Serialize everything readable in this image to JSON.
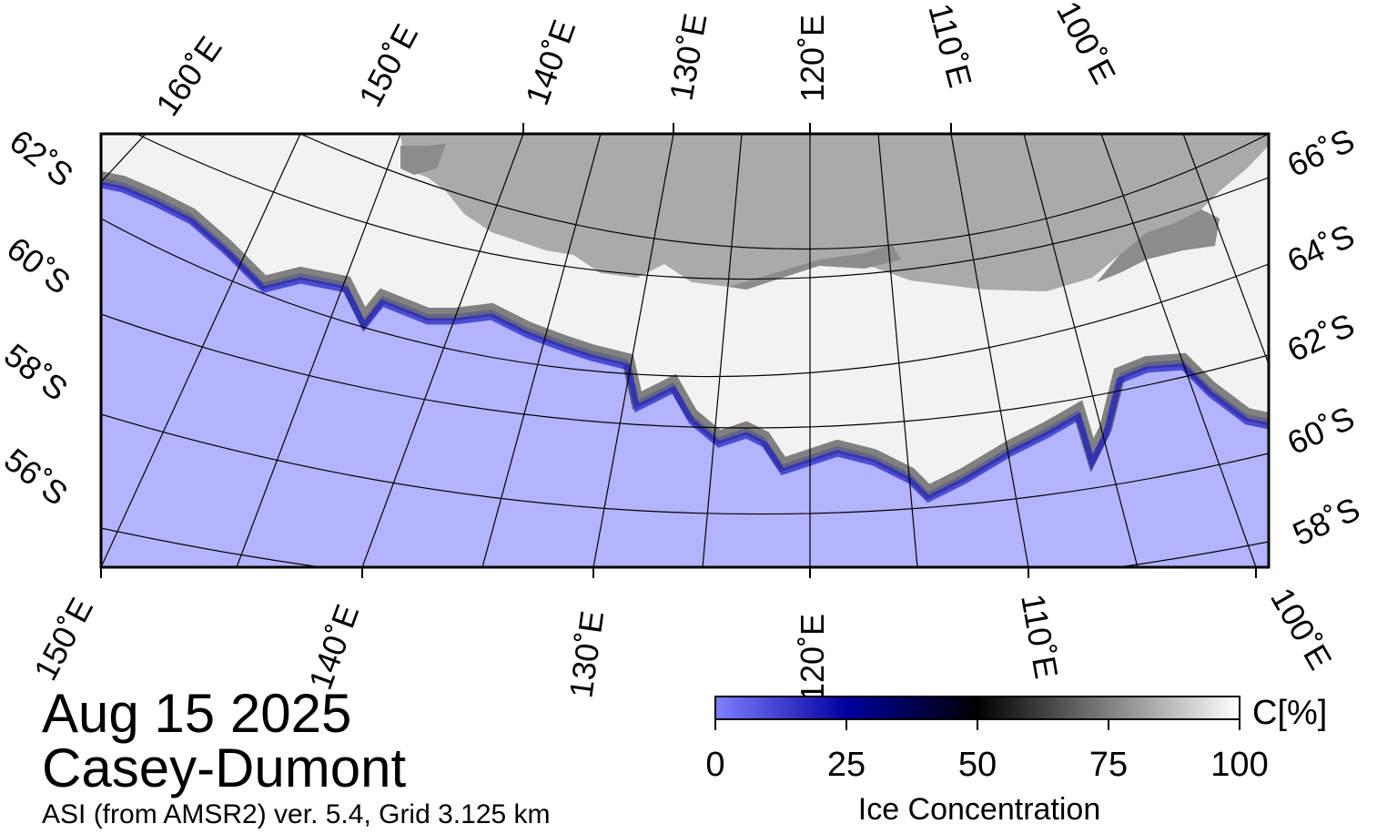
{
  "title": {
    "date": "Aug 15 2025",
    "region": "Casey-Dumont",
    "source": "ASI (from AMSR2) ver. 5.4,  Grid 3.125 km"
  },
  "map": {
    "top_lon_labels": [
      "160˚E",
      "150˚E",
      "140˚E",
      "130˚E",
      "120˚E",
      "110˚E",
      "100˚E"
    ],
    "left_lat_labels": [
      "62˚S",
      "60˚S",
      "58˚S",
      "56˚S"
    ],
    "right_lat_labels": [
      "66˚S",
      "64˚S",
      "62˚S",
      "60˚S",
      "58˚S"
    ],
    "bottom_lon_labels": [
      "150˚E",
      "140˚E",
      "130˚E",
      "120˚E",
      "110˚E",
      "100˚E"
    ],
    "colors": {
      "ocean": "#b3b3ff",
      "land": "#aaaaaa",
      "ice_shelf": "#8c8c8c",
      "high_ice": "#f4f4f4",
      "low_ice": "#2020c0"
    }
  },
  "colorbar": {
    "label": "Ice Concentration",
    "unit": "C[%]",
    "ticks": [
      "0",
      "25",
      "50",
      "75",
      "100"
    ],
    "range": [
      0,
      100
    ]
  }
}
